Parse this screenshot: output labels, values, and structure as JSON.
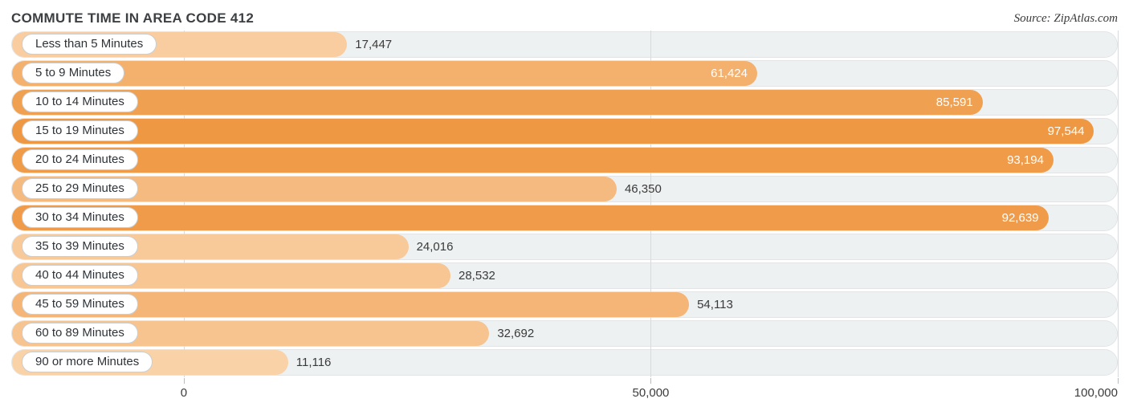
{
  "header": {
    "title": "COMMUTE TIME IN AREA CODE 412",
    "source": "Source: ZipAtlas.com"
  },
  "chart_data": {
    "type": "bar",
    "orientation": "horizontal",
    "title": "Commute Time in Area Code 412",
    "xlabel": "",
    "ylabel": "",
    "xlim": [
      0,
      100000
    ],
    "grid": true,
    "legend": false,
    "x_ticks": [
      "0",
      "50,000",
      "100,000"
    ],
    "x_tick_values": [
      0,
      50000,
      100000
    ],
    "categories": [
      "Less than 5 Minutes",
      "5 to 9 Minutes",
      "10 to 14 Minutes",
      "15 to 19 Minutes",
      "20 to 24 Minutes",
      "25 to 29 Minutes",
      "30 to 34 Minutes",
      "35 to 39 Minutes",
      "40 to 44 Minutes",
      "45 to 59 Minutes",
      "60 to 89 Minutes",
      "90 or more Minutes"
    ],
    "values": [
      17447,
      61424,
      85591,
      97544,
      93194,
      46350,
      92639,
      24016,
      28532,
      54113,
      32692,
      11116
    ],
    "value_labels": [
      "17,447",
      "61,424",
      "85,591",
      "97,544",
      "93,194",
      "46,350",
      "92,639",
      "24,016",
      "28,532",
      "54,113",
      "32,692",
      "11,116"
    ],
    "bar_colors": [
      "#f9cda0",
      "#f4b06d",
      "#f0a051",
      "#ef9843",
      "#f09b48",
      "#f5ba7f",
      "#f09b49",
      "#f8c999",
      "#f8c693",
      "#f4b576",
      "#f7c38f",
      "#fad2a8"
    ],
    "accent_color": "#ef9843",
    "track_color": "#eef1f2",
    "grid_color": "#d7dbde",
    "inside_label_min": 60000
  }
}
